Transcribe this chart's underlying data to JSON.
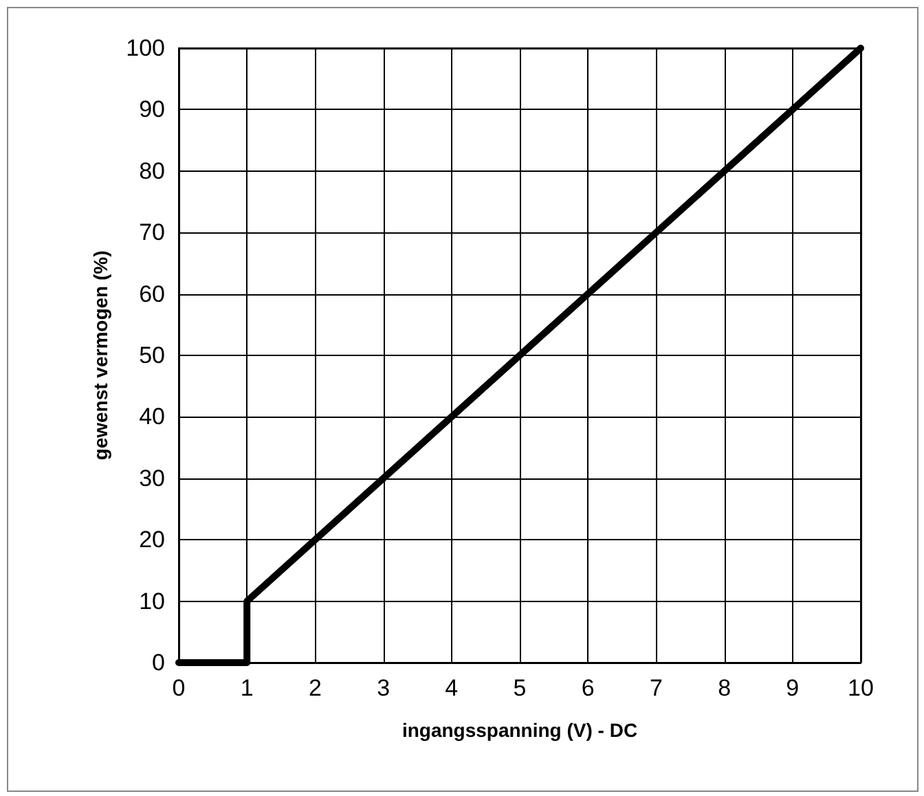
{
  "chart_data": {
    "type": "line",
    "xlabel": "ingangsspanning (V) - DC",
    "ylabel": "gewenst vermogen (%)",
    "x": [
      0,
      1,
      1,
      10
    ],
    "series": [
      {
        "color": "#000000",
        "values": [
          0,
          0,
          10,
          100
        ]
      }
    ],
    "xlim": [
      0,
      10
    ],
    "xticks": [
      0,
      1,
      2,
      3,
      4,
      5,
      6,
      7,
      8,
      9,
      10
    ],
    "ylim": [
      0,
      100
    ],
    "yticks": [
      0,
      10,
      20,
      30,
      40,
      50,
      60,
      70,
      80,
      90,
      100
    ],
    "grid": true,
    "marker": "none",
    "line_style": "solid"
  }
}
